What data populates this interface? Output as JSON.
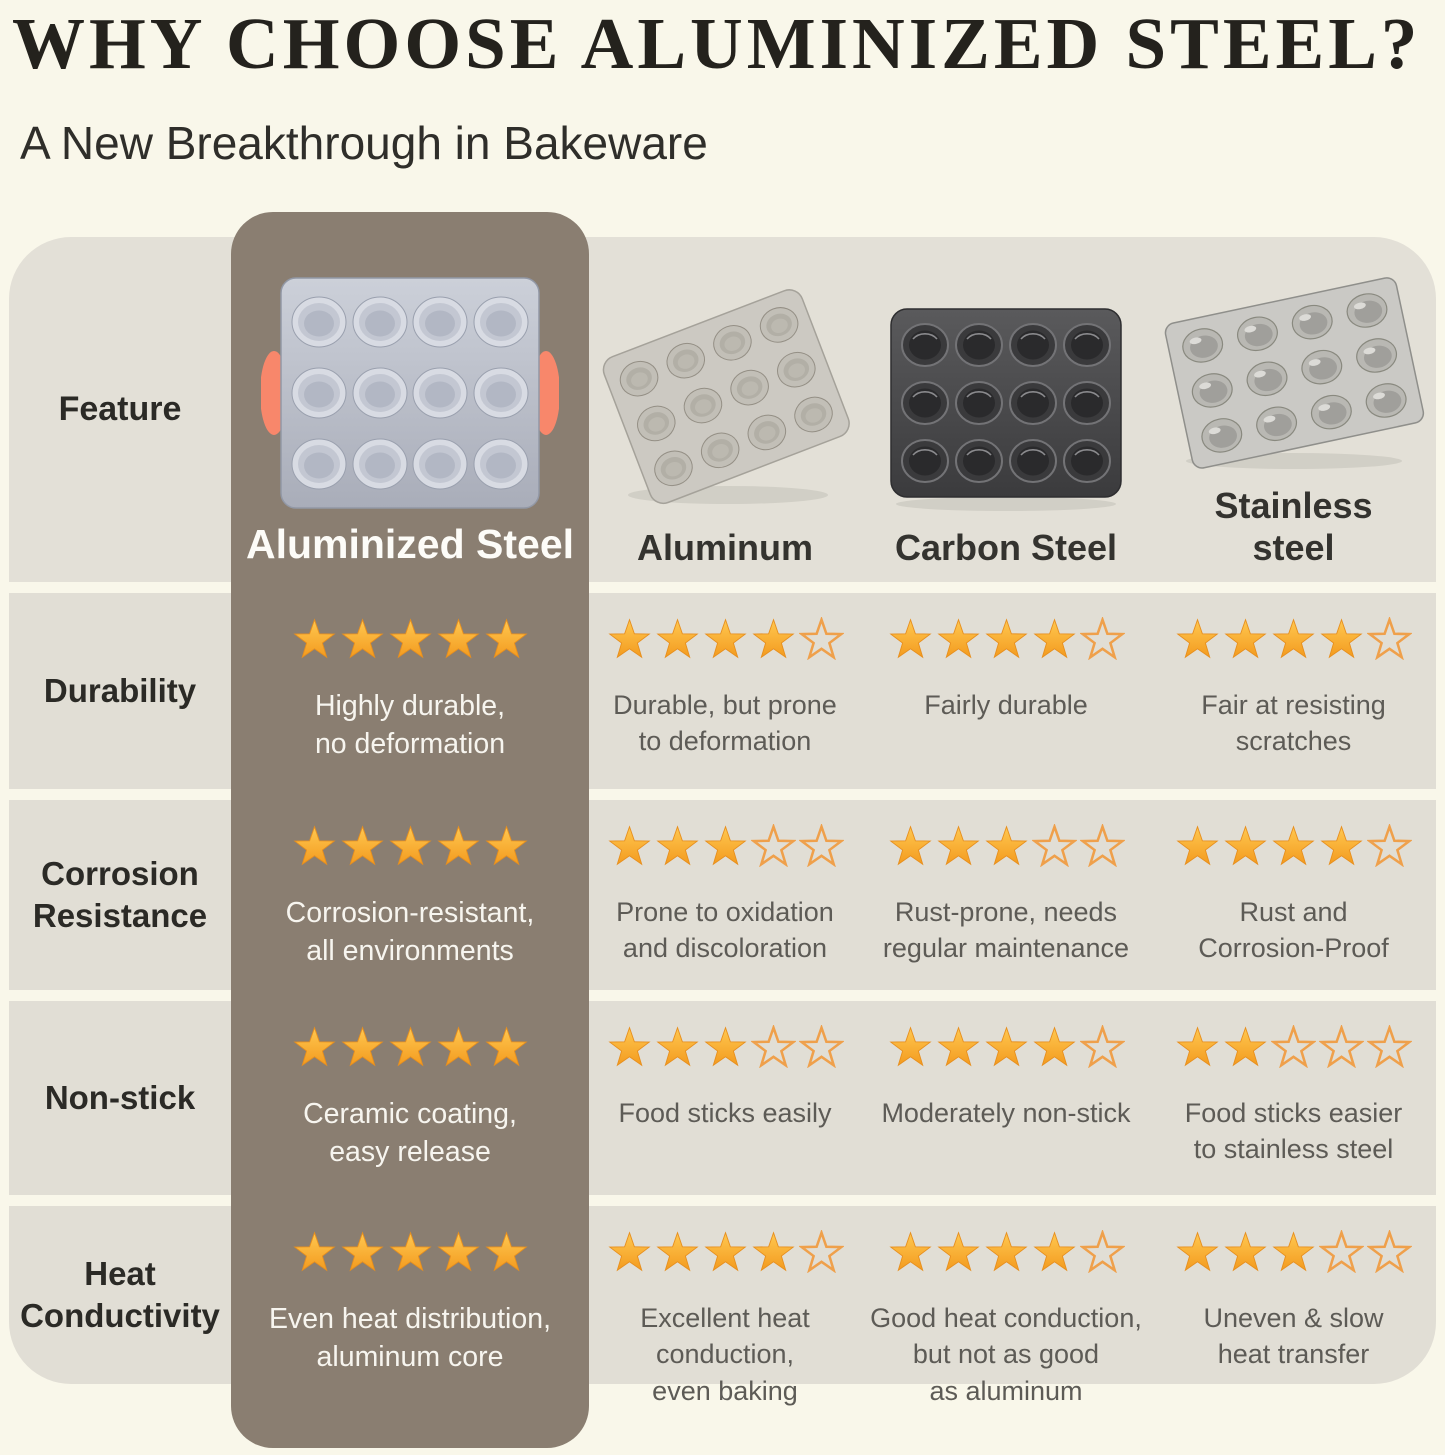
{
  "title": "WHY CHOOSE ALUMINIZED STEEL?",
  "subtitle": "A New Breakthrough in Bakeware",
  "chart_data": {
    "type": "table",
    "feature_column_header": "Feature",
    "columns": [
      "Aluminized Steel",
      "Aluminum",
      "Carbon Steel",
      "Stainless steel"
    ],
    "highlighted_column_index": 0,
    "rating_scale_max": 5,
    "rows": [
      {
        "feature": "Durability",
        "cells": [
          {
            "rating": 5,
            "note": "Highly durable,\nno deformation"
          },
          {
            "rating": 4,
            "note": "Durable, but prone\nto deformation"
          },
          {
            "rating": 4,
            "note": "Fairly durable"
          },
          {
            "rating": 4,
            "note": "Fair at resisting\nscratches"
          }
        ]
      },
      {
        "feature": "Corrosion Resistance",
        "cells": [
          {
            "rating": 5,
            "note": "Corrosion-resistant,\nall environments"
          },
          {
            "rating": 3,
            "note": "Prone to oxidation\nand discoloration"
          },
          {
            "rating": 3,
            "note": "Rust-prone, needs\nregular maintenance"
          },
          {
            "rating": 4,
            "note": "Rust and\nCorrosion-Proof"
          }
        ]
      },
      {
        "feature": "Non-stick",
        "cells": [
          {
            "rating": 5,
            "note": "Ceramic coating,\neasy release"
          },
          {
            "rating": 3,
            "note": "Food sticks easily"
          },
          {
            "rating": 4,
            "note": "Moderately non-stick"
          },
          {
            "rating": 2,
            "note": "Food sticks easier\nto stainless steel"
          }
        ]
      },
      {
        "feature": "Heat Conductivity",
        "cells": [
          {
            "rating": 5,
            "note": "Even heat distribution,\naluminum core"
          },
          {
            "rating": 4,
            "note": "Excellent heat\nconduction,\neven baking"
          },
          {
            "rating": 4,
            "note": "Good heat conduction,\nbut not as good\nas aluminum"
          },
          {
            "rating": 3,
            "note": "Uneven & slow\nheat transfer"
          }
        ]
      }
    ]
  },
  "colors": {
    "page_background": "#f9f7ea",
    "band_background": "#e2dfd6",
    "highlight_column": "#8a7e71",
    "star_filled": "#f8a62b",
    "star_outline": "#efa04b",
    "pan_handle_accent": "#f8876b",
    "title_text": "#24221d",
    "body_text": "#5d5b56",
    "highlight_text": "#f7f5ef"
  }
}
